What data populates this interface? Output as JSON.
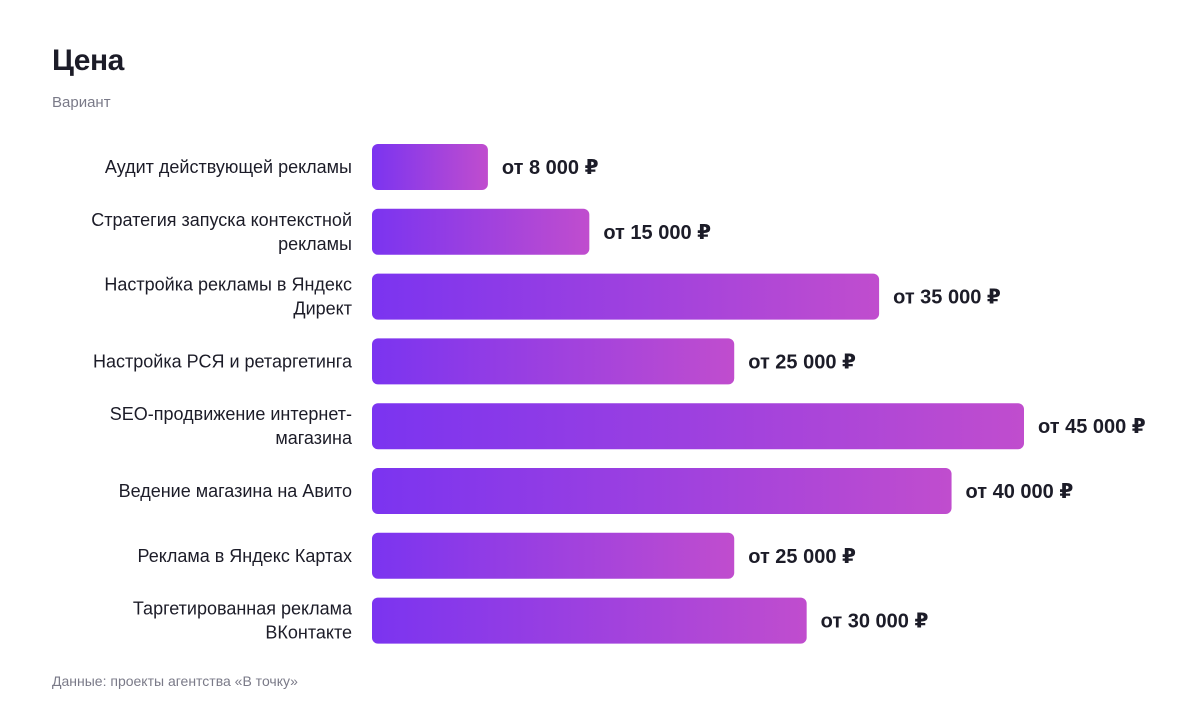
{
  "header": {
    "title": "Цена",
    "subtitle": "Вариант"
  },
  "footer": {
    "source": "Данные: проекты агентства «В точку»"
  },
  "colors": {
    "bar_start": "#7b34f0",
    "bar_end": "#c04dce",
    "text": "#1c1c28",
    "muted": "#7a7a88"
  },
  "chart_data": {
    "type": "bar",
    "orientation": "horizontal",
    "title": "Цена",
    "subtitle": "Вариант",
    "categories": [
      [
        "Аудит действующей рекламы"
      ],
      [
        "Стратегия запуска контекстной",
        "рекламы"
      ],
      [
        "Настройка рекламы в Яндекс",
        "Директ"
      ],
      [
        "Настройка РСЯ и ретаргетинга"
      ],
      [
        "SEO-продвижение интернет-",
        "магазина"
      ],
      [
        "Ведение магазина на Авито"
      ],
      [
        "Реклама в Яндекс Картах"
      ],
      [
        "Таргетированная реклама",
        "ВКонтакте"
      ]
    ],
    "values": [
      8000,
      15000,
      35000,
      25000,
      45000,
      40000,
      25000,
      30000
    ],
    "value_labels": [
      "от 8 000 ₽",
      "от 15 000 ₽",
      "от 35 000 ₽",
      "от 25 000 ₽",
      "от 45 000 ₽",
      "от 40 000 ₽",
      "от 25 000 ₽",
      "от 30 000 ₽"
    ],
    "xlim": [
      0,
      45000
    ],
    "grid": false,
    "legend": "none",
    "source": "Данные: проекты агентства «В точку»"
  }
}
